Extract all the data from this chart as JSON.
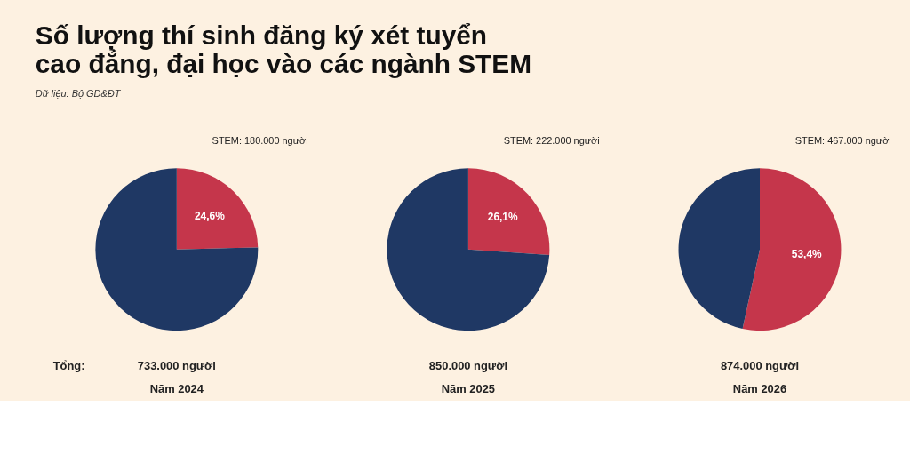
{
  "chart_data": [
    {
      "type": "pie",
      "title": "Số lượng thí sinh đăng ký xét tuyển cao đẳng, đại học vào các ngành STEM",
      "subtitle": "Dữ liệu: Bộ GD&ĐT",
      "categories": [
        null,
        null
      ],
      "values": [
        24.6,
        75.4
      ],
      "colors": [
        "#c5364b",
        "#1f3864"
      ],
      "value_labels": [
        "24,6%",
        null
      ],
      "annotations": [
        "STEM: 180.000 người",
        "Tổng:",
        "733.000 người",
        "Năm 2024"
      ]
    },
    {
      "type": "pie",
      "categories": [
        null,
        null
      ],
      "values": [
        26.1,
        73.9
      ],
      "colors": [
        "#c5364b",
        "#1f3864"
      ],
      "value_labels": [
        "26,1%",
        null
      ],
      "annotations": [
        "STEM: 222.000 người",
        "850.000 người",
        "Năm 2025"
      ]
    },
    {
      "type": "pie",
      "categories": [
        null,
        null
      ],
      "values": [
        53.4,
        46.6
      ],
      "colors": [
        "#c5364b",
        "#1f3864"
      ],
      "value_labels": [
        "53,4%",
        null
      ],
      "annotations": [
        "STEM: 467.000 người",
        "874.000 người",
        "Năm 2026"
      ]
    }
  ]
}
